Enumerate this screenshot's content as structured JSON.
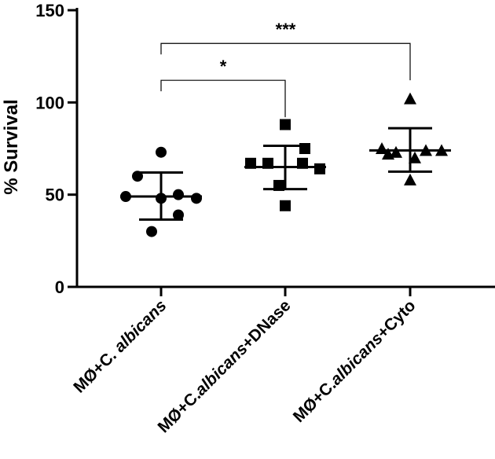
{
  "chart_data": {
    "type": "scatter",
    "ylabel": "% Survival",
    "xlabel": "",
    "ylim": [
      0,
      150
    ],
    "yticks": [
      0,
      50,
      100,
      150
    ],
    "grid": false,
    "categories": [
      {
        "prefix": "MØ+C. ",
        "italic": "albicans",
        "suffix": ""
      },
      {
        "prefix": "MØ+C.",
        "italic": "albicans",
        "suffix": "+DNase"
      },
      {
        "prefix": "MØ+C.",
        "italic": "albicans",
        "suffix": "+Cyto"
      }
    ],
    "series": [
      {
        "marker": "circle",
        "values": [
          73,
          60,
          50,
          49,
          48,
          48,
          39,
          30
        ],
        "mean": 49,
        "sd_upper": 62,
        "sd_lower": 36.5
      },
      {
        "marker": "square",
        "values": [
          88,
          75,
          67,
          67,
          67,
          64,
          55,
          44
        ],
        "mean": 65,
        "sd_upper": 76.5,
        "sd_lower": 53
      },
      {
        "marker": "triangle",
        "values": [
          102,
          75,
          74,
          74,
          73,
          72,
          70,
          58
        ],
        "mean": 74,
        "sd_upper": 86,
        "sd_lower": 62.5
      }
    ],
    "comparisons": [
      {
        "from": 0,
        "to": 1,
        "label": "*",
        "level": 112
      },
      {
        "from": 0,
        "to": 2,
        "label": "***",
        "level": 132
      }
    ]
  }
}
